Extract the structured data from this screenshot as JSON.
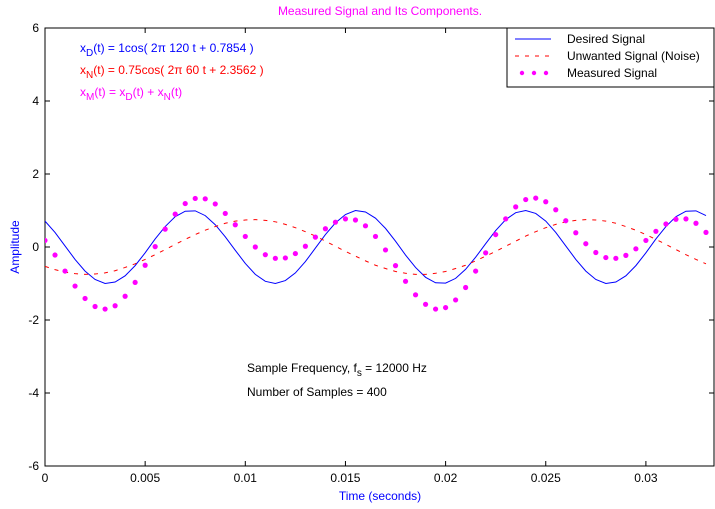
{
  "chart_data": {
    "type": "line",
    "title": "Measured Signal and Its Components.",
    "x_label": "Time (seconds)",
    "y_label": "Amplitude",
    "xlim": [
      0,
      0.0334
    ],
    "ylim": [
      -6,
      6
    ],
    "xticks": [
      0,
      0.005,
      0.01,
      0.015,
      0.02,
      0.025,
      0.03
    ],
    "yticks": [
      -6,
      -4,
      -2,
      0,
      2,
      4,
      6
    ],
    "legend": "upper right",
    "annotations": [
      {
        "color": "#0000ff",
        "text": [
          "x",
          "D",
          "(t) = 1cos( 2π 120 t + 0.7854 )"
        ]
      },
      {
        "color": "#ff0000",
        "text": [
          "x",
          "N",
          "(t) = 0.75cos( 2π 60 t + 2.3562 )"
        ]
      },
      {
        "color": "#ff00ff",
        "text": [
          "x",
          "M",
          "(t) = x",
          "D",
          "(t) + x",
          "N",
          "(t)"
        ]
      },
      {
        "color": "#000000",
        "text": [
          "Sample Frequency, f",
          "s",
          " = 12000 Hz"
        ]
      },
      {
        "color": "#000000",
        "text": [
          "Number of Samples = 400"
        ]
      }
    ],
    "x": [
      0,
      0.0005,
      0.001,
      0.0015,
      0.002,
      0.0025,
      0.003,
      0.0035,
      0.004,
      0.0045,
      0.005,
      0.0055,
      0.006,
      0.0065,
      0.007,
      0.0075,
      0.008,
      0.0085,
      0.009,
      0.0095,
      0.01,
      0.0105,
      0.011,
      0.0115,
      0.012,
      0.0125,
      0.013,
      0.0135,
      0.014,
      0.0145,
      0.015,
      0.0155,
      0.016,
      0.0165,
      0.017,
      0.0175,
      0.018,
      0.0185,
      0.019,
      0.0195,
      0.02,
      0.0205,
      0.021,
      0.0215,
      0.022,
      0.0225,
      0.023,
      0.0235,
      0.024,
      0.0245,
      0.025,
      0.0255,
      0.026,
      0.0265,
      0.027,
      0.0275,
      0.028,
      0.0285,
      0.029,
      0.0295,
      0.03,
      0.0305,
      0.031,
      0.0315,
      0.032,
      0.0325,
      0.033
    ],
    "series": [
      {
        "name": "Desired Signal",
        "color": "#0000ff",
        "style": "solid",
        "values": [
          0.71,
          0.4,
          0.03,
          -0.34,
          -0.66,
          -0.89,
          -1.0,
          -0.96,
          -0.79,
          -0.51,
          -0.16,
          0.22,
          0.56,
          0.83,
          0.98,
          0.99,
          0.86,
          0.61,
          0.28,
          -0.09,
          -0.45,
          -0.75,
          -0.94,
          -1.0,
          -0.92,
          -0.71,
          -0.4,
          -0.03,
          0.34,
          0.66,
          0.89,
          1.0,
          0.96,
          0.79,
          0.51,
          0.16,
          -0.22,
          -0.56,
          -0.83,
          -0.98,
          -0.99,
          -0.86,
          -0.61,
          -0.28,
          0.09,
          0.45,
          0.75,
          0.94,
          1.0,
          0.92,
          0.71,
          0.4,
          0.03,
          -0.34,
          -0.66,
          -0.89,
          -1.0,
          -0.96,
          -0.79,
          -0.51,
          -0.16,
          0.22,
          0.56,
          0.83,
          0.98,
          0.99,
          0.86
        ]
      },
      {
        "name": "Unwanted Signal (Noise)",
        "color": "#ff0000",
        "style": "dashed",
        "values": [
          -0.53,
          -0.62,
          -0.69,
          -0.73,
          -0.75,
          -0.74,
          -0.71,
          -0.65,
          -0.56,
          -0.46,
          -0.34,
          -0.21,
          -0.07,
          0.07,
          0.21,
          0.34,
          0.46,
          0.56,
          0.65,
          0.71,
          0.74,
          0.75,
          0.73,
          0.69,
          0.62,
          0.53,
          0.42,
          0.3,
          0.16,
          0.02,
          -0.12,
          -0.25,
          -0.38,
          -0.5,
          -0.59,
          -0.67,
          -0.72,
          -0.75,
          -0.75,
          -0.72,
          -0.67,
          -0.59,
          -0.5,
          -0.38,
          -0.25,
          -0.12,
          0.02,
          0.16,
          0.3,
          0.42,
          0.53,
          0.62,
          0.69,
          0.73,
          0.75,
          0.74,
          0.71,
          0.65,
          0.56,
          0.46,
          0.34,
          0.21,
          0.07,
          -0.07,
          -0.21,
          -0.34,
          -0.46
        ]
      },
      {
        "name": "Measured Signal",
        "color": "#ff00ff",
        "style": "dots",
        "values": [
          0.18,
          -0.22,
          -0.66,
          -1.07,
          -1.41,
          -1.63,
          -1.7,
          -1.61,
          -1.35,
          -0.97,
          -0.5,
          0.01,
          0.49,
          0.9,
          1.19,
          1.33,
          1.32,
          1.18,
          0.92,
          0.61,
          0.29,
          0.0,
          -0.21,
          -0.31,
          -0.3,
          -0.18,
          0.02,
          0.27,
          0.5,
          0.68,
          0.77,
          0.74,
          0.58,
          0.29,
          -0.08,
          -0.51,
          -0.94,
          -1.31,
          -1.57,
          -1.7,
          -1.66,
          -1.45,
          -1.11,
          -0.66,
          -0.16,
          0.34,
          0.77,
          1.1,
          1.3,
          1.34,
          1.24,
          1.02,
          0.72,
          0.39,
          0.09,
          -0.15,
          -0.29,
          -0.31,
          -0.23,
          -0.05,
          0.18,
          0.43,
          0.63,
          0.76,
          0.77,
          0.65,
          0.4
        ]
      }
    ]
  }
}
